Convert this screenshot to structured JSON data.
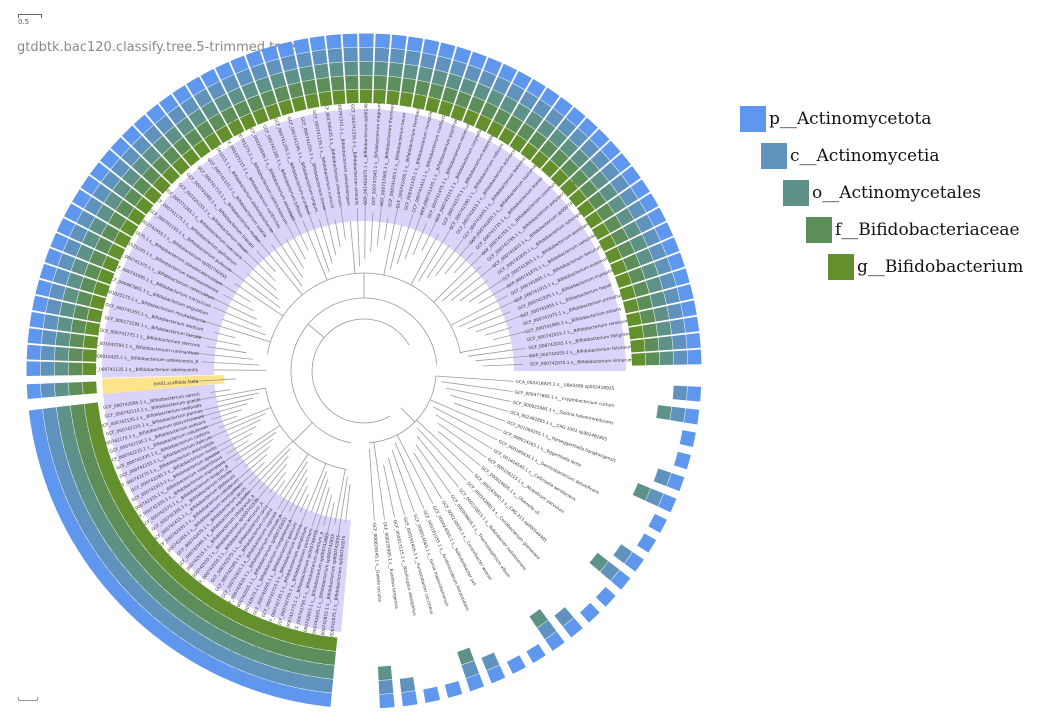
{
  "scale": {
    "value": "0.5"
  },
  "tree": {
    "title": "gtdbtk.bac120.classify.tree.5-trimmed.tree",
    "highlight_color": "#dcd3fb",
    "query_highlight_color": "#fde48a",
    "branch_color": "#9b9b9b",
    "query_leaf": "bin01.scaffolds.fasta",
    "clade_leaves": [
      "GCF_000741135.1 s__Bifidobacterium adolescentis",
      "GCF_000010425.1 s__Bifidobacterium adolescentis_B",
      "GCF_001042595.1 s__Bifidobacterium ruminantium",
      "GCF_000741775.1 s__Bifidobacterium stercoris",
      "GCF_000173195.1 s__Bifidobacterium faecale",
      "GCF_000741555.1 s__Bifidobacterium dentium",
      "GCF_001025175.1 s__Bifidobacterium moukalabense",
      "GCF_000967865.1 s__Bifidobacterium angulatum",
      "GCF_000741695.1 s__Bifidobacterium merycicum",
      "GCF_000741375.1 s__Bifidobacterium catenulatum",
      "GCF_001025195.1 s__Bifidobacterium kashiwanohense",
      "GCF_000741675.1 s__Bifidobacterium pseudocatenulatum",
      "GCF_002742455.1 s__Bifidobacterium sp002742455",
      "GCF_000741155.1 s__Bifidobacterium pullorum",
      "GCF_000741175.1 s__Bifidobacterium gallinarum",
      "GCF_000771265.1 s__Bifidobacterium saeculare",
      "GCF_001025155.1 s__Bifidobacterium tissieri",
      "GCF_000741085.1 s__Bifidobacterium biavatii",
      "GCF_000741715.1 s__Bifidobacterium reuteri",
      "GCF_000741125.1 s__Bifidobacterium subtile",
      "GCF_000741015.1 s__Bifidobacterium stellenboschense",
      "GCF_001025215.1 s__Bifidobacterium callitrichos",
      "GCF_000741275.1 s__Bifidobacterium callitrichidarum",
      "GCF_002259645.1 s__Bifidobacterium aesculapii",
      "GCF_000741395.1 s__Bifidobacterium bifidum",
      "GCF_000741205.1 s__Bifidobacterium scardovii",
      "GCF_000741195.1 s__Bifidobacterium longum",
      "GCF_000741255.1 s__Bifidobacterium breve",
      "GCF_000741235.1 s__Bifidobacterium cuniculi",
      "GCF_002706435.1 s__Bifidobacterium choerinum",
      "GCF_000741315.1 s__Bifidobacterium pseudolongum",
      "GCF_000741335.1 s__Bifidobacterium animalis",
      "GCF_001402875.1 s__Bifidobacterium sp001402875",
      "GCF_000737945.1 s__Bifidobacterium magnum",
      "GCF_000737865.1 s__Bifidobacterium thermophilum",
      "GCF_000741455.1 s__Bifidobacterium boum",
      "GCF_000741495.1 s__Bifidobacterium thermacidophilum",
      "GCF_000741535.1 s__Bifidobacterium mongoliense",
      "GCF_000741415.1 s__Bifidobacterium crudilactis",
      "GCF_000741435.1 s__Bifidobacterium psychraerophilum",
      "GCF_000741475.1 s__Bifidobacterium minimum",
      "GCF_000741515.1 s__Bifidobacterium coryneforme",
      "GCF_000741575.1 s__Bifidobacterium asteroides",
      "GCF_000741595.1 s__Bifidobacterium indicum",
      "GCF_000741615.1 s__Bifidobacterium actinocoloniiforme",
      "GCF_000741635.1 s__Bifidobacterium bohemicum",
      "GCF_000741655.1 s__Bifidobacterium tsurumiense",
      "GCF_000741735.1 s__Bifidobacterium bombi",
      "GCF_000741755.1 s__Bifidobacterium commune",
      "GCF_000741795.1 s__Bifidobacterium polysaccharolyticum",
      "GCF_000741815.1 s__Bifidobacterium sp000741815",
      "GCF_000741835.1 s__Bifidobacterium xylocopae",
      "GCF_000741855.1 s__Bifidobacterium aemilianum",
      "GCF_000741875.1 s__Bifidobacterium vansinderenii",
      "GCF_000741895.1 s__Bifidobacterium lemurum",
      "GCF_000741915.1 s__Bifidobacterium eulemuris",
      "GCF_000741935.1 s__Bifidobacterium myosotis",
      "GCF_000741955.1 s__Bifidobacterium hapali",
      "GCF_000741975.1 s__Bifidobacterium primatium",
      "GCF_000741995.1 s__Bifidobacterium anseris",
      "GCF_000742015.1 s__Bifidobacterium ramosum",
      "GCF_000742035.1 s__Bifidobacterium tibiigranuli",
      "GCF_000742055.1 s__Bifidobacterium felsineum",
      "GCF_000742075.1 s__Bifidobacterium simiarum",
      "GCF_000742095.1 s__Bifidobacterium samirii",
      "GCF_000742115.1 s__Bifidobacterium goeldii",
      "GCF_000742135.1 s__Bifidobacterium oedipodis",
      "GCF_000742155.1 s__Bifidobacterium parmae",
      "GCF_000742175.1 s__Bifidobacterium platyrrhinorum",
      "GCF_000742195.1 s__Bifidobacterium avesanii",
      "GCF_000742215.1 s__Bifidobacterium catulorum",
      "GCF_000742235.1 s__Bifidobacterium castoris",
      "GCF_000742255.1 s__Bifidobacterium italicum",
      "GCF_000742275.1 s__Bifidobacterium dolichotidis",
      "GCF_000742295.1 s__Bifidobacterium mellis",
      "GCF_000742315.1 s__Bifidobacterium apousia",
      "GCF_000742335.1 s__Bifidobacterium vespertilionis",
      "GCF_000742355.1 s__Bifidobacterium imperatoris",
      "GCF_000742375.1 s__Bifidobacterium longum_B",
      "GCF_000742395.1 s__Bifidobacterium infantis",
      "GCF_000742415.1 s__Bifidobacterium globosum",
      "GCF_000742435.1 s__Bifidobacterium cebidarum",
      "GCF_000742455.1 s__Bifidobacterium leontopitheci",
      "GCF_000742475.1 s__Bifidobacterium jacchi",
      "GCF_000742495.1 s__Bifidobacterium aquikefiri",
      "GCF_000742515.1 s__Bifidobacterium tibiigranuli_A",
      "GCF_000742535.1 s__Bifidobacterium sp000742535",
      "GCF_000742555.1 s__Bifidobacterium lemurum_A",
      "GCF_000742575.1 s__Bifidobacterium canis",
      "GCF_000742595.1 s__Bifidobacterium cricetid",
      "GCF_000742615.1 s__Bifidobacterium vaginale",
      "GCF_000742635.1 s__Bifidobacterium minimum_A",
      "GCF_000742655.1 s__Bifidobacterium sp000742655",
      "GCF_000742675.1 s__Bifidobacterium mongoliense_A",
      "GCF_000742695.1 s__Bifidobacterium gallicum",
      "GCF_000742715.1 s__Bifidobacterium hominis",
      "GCF_000742735.1 s__Bifidobacterium aerophilum",
      "GCF_000742755.1 s__Bifidobacterium porcinum",
      "GCF_000742775.1 s__Bifidobacterium sp000742775",
      "GCF_000742795.1 s__Bifidobacterium dentium_A",
      "GCF_000742815.1 s__Bifidobacterium sp000742815",
      "GCF_000742835.1 s__Bifidobacterium sp000742835",
      "GCF_000742855.1 s__Bifidobacterium sp000742855",
      "GCF_000742875.1 s__Bifidobacterium sp000742875"
    ],
    "outgroup_leaves": [
      "GCA_002418925.1 s__UBA5589 sp002418925",
      "GCF_000477695.1 s__Cryptobacterium curtum",
      "GCF_000025065.1 s__Slackia heliotrinireducens",
      "GCA_902482805.1 s__CAG-1001 sp902482805",
      "GCF_001064255.1 s__Paraeggerthella hongkongensis",
      "GCF_000024265.1 s__Eggerthella lenta",
      "GCF_000180435.1 s__Denitrobacterium detoxificans",
      "GCF_001404545.1 s__Collinsella aerofaciens",
      "GCF_000156215.1 s__Atopobium parvulum",
      "GCF_000024605.1 s__Olsenella uli",
      "GCF_000143945.1 s__CAG-313 sp900544305",
      "GCF_000143885.1 s__Coriobacterium glomerans",
      "GCF_000210815.1 s__Rubrobacter radiotolerans",
      "GCF_000009605.1 s__Thermoleophilum album",
      "GCF_000210635.1 s__Conexibacter woesei",
      "GCF_000024005.1 s__Solirubrobacter soli",
      "GCF_000181055.1 s__Acidimicrobium ferrooxidans",
      "GCF_000014565.1 s__Iamia majanohamensis",
      "GCF_000191405.1 s__Ilumatobacter coccineus",
      "GCF_000013125.1 s__Nitriliruptor alkaliphilus",
      "GCF_000235905.1 s__Euzebya tangerina",
      "GCF_000024545.1 s__Gaiella occulta"
    ],
    "ring_colors": [
      "#5f96ee",
      "#5f93bd",
      "#5e9187",
      "#5d8d59",
      "#648f2d"
    ]
  },
  "legend": [
    {
      "label": "p__Actinomycetota",
      "color": "#5f96ee"
    },
    {
      "label": "c__Actinomycetia",
      "color": "#5f93bd"
    },
    {
      "label": "o__Actinomycetales",
      "color": "#5e9187"
    },
    {
      "label": "f__Bifidobacteriaceae",
      "color": "#5d8d59"
    },
    {
      "label": "g__Bifidobacterium",
      "color": "#648f2d"
    }
  ]
}
